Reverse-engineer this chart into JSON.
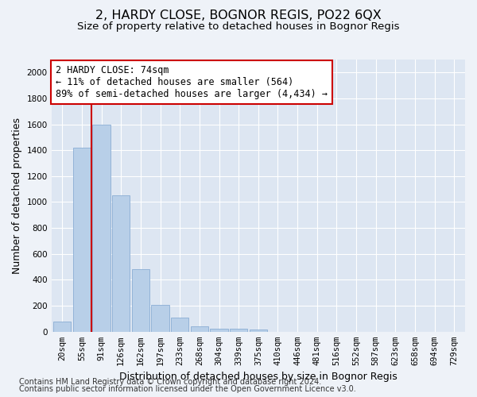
{
  "title": "2, HARDY CLOSE, BOGNOR REGIS, PO22 6QX",
  "subtitle": "Size of property relative to detached houses in Bognor Regis",
  "xlabel": "Distribution of detached houses by size in Bognor Regis",
  "ylabel": "Number of detached properties",
  "footnote1": "Contains HM Land Registry data © Crown copyright and database right 2024.",
  "footnote2": "Contains public sector information licensed under the Open Government Licence v3.0.",
  "categories": [
    "20sqm",
    "55sqm",
    "91sqm",
    "126sqm",
    "162sqm",
    "197sqm",
    "233sqm",
    "268sqm",
    "304sqm",
    "339sqm",
    "375sqm",
    "410sqm",
    "446sqm",
    "481sqm",
    "516sqm",
    "552sqm",
    "587sqm",
    "623sqm",
    "658sqm",
    "694sqm",
    "729sqm"
  ],
  "values": [
    80,
    1420,
    1600,
    1055,
    480,
    205,
    108,
    40,
    25,
    20,
    18,
    0,
    0,
    0,
    0,
    0,
    0,
    0,
    0,
    0,
    0
  ],
  "bar_color": "#b8cfe8",
  "bar_edge_color": "#8aadd4",
  "vline_color": "#cc0000",
  "vline_x": 1.5,
  "annotation_line1": "2 HARDY CLOSE: 74sqm",
  "annotation_line2": "← 11% of detached houses are smaller (564)",
  "annotation_line3": "89% of semi-detached houses are larger (4,434) →",
  "annotation_box_color": "#ffffff",
  "annotation_box_edgecolor": "#cc0000",
  "ylim": [
    0,
    2100
  ],
  "yticks": [
    0,
    200,
    400,
    600,
    800,
    1000,
    1200,
    1400,
    1600,
    1800,
    2000
  ],
  "background_color": "#eef2f8",
  "plot_background": "#dde6f2",
  "grid_color": "#ffffff",
  "title_fontsize": 11.5,
  "subtitle_fontsize": 9.5,
  "axis_label_fontsize": 9,
  "tick_fontsize": 7.5,
  "annotation_fontsize": 8.5,
  "footnote_fontsize": 7
}
